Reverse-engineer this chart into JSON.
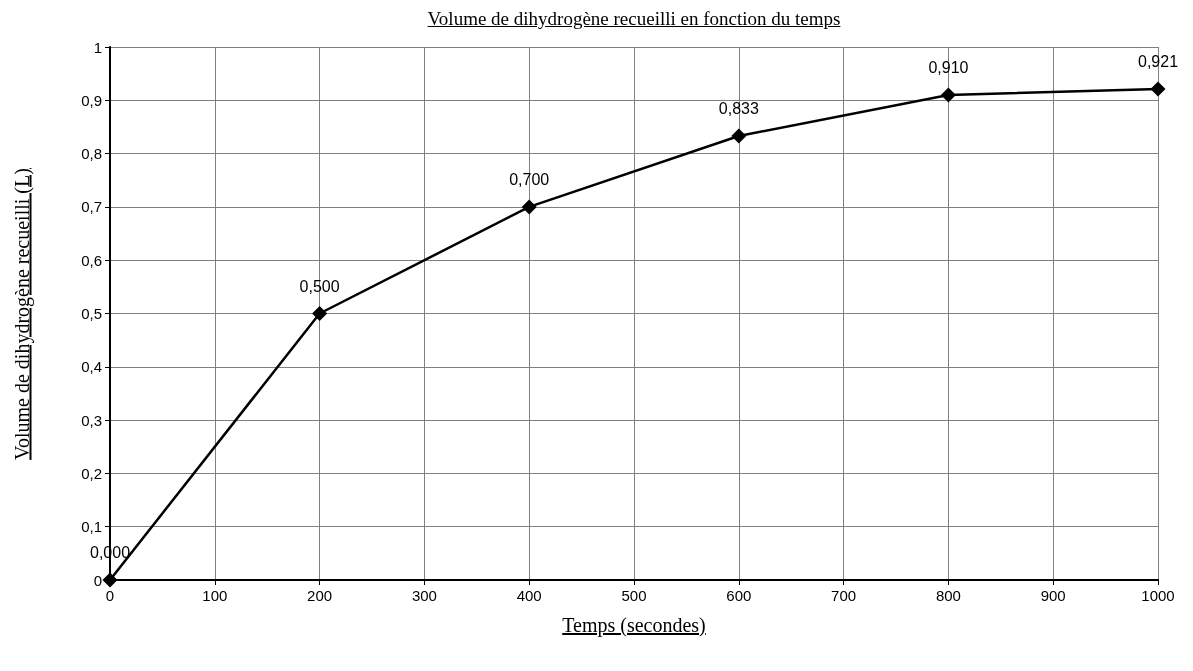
{
  "chart_data": {
    "type": "line",
    "title": "Volume de dihydrogène recueilli en fonction du temps",
    "xlabel": "Temps (secondes)",
    "ylabel": "Volume de dihydrogène recueilli (L)",
    "x": [
      0,
      200,
      400,
      600,
      800,
      1000
    ],
    "series": [
      {
        "color": "#000000",
        "values": [
          0,
          0.5,
          0.7,
          0.833,
          0.91,
          0.921
        ],
        "value_labels": [
          "0,000",
          "0,500",
          "0,700",
          "0,833",
          "0,910",
          "0,921"
        ]
      }
    ],
    "xlim": [
      0,
      1000
    ],
    "xticks": [
      0,
      100,
      200,
      300,
      400,
      500,
      600,
      700,
      800,
      900,
      1000
    ],
    "ylim": [
      0,
      1
    ],
    "yticks": [
      0,
      {
        "value": 0.1,
        "label": "0,1"
      },
      {
        "value": 0.2,
        "label": "0,2"
      },
      {
        "value": 0.3,
        "label": "0,3"
      },
      {
        "value": 0.4,
        "label": "0,4"
      },
      {
        "value": 0.5,
        "label": "0,5"
      },
      {
        "value": 0.6,
        "label": "0,6"
      },
      {
        "value": 0.7,
        "label": "0,7"
      },
      {
        "value": 0.8,
        "label": "0,8"
      },
      {
        "value": 0.9,
        "label": "0,9"
      },
      1
    ],
    "grid": true,
    "marker": "diamond",
    "line_style": "solid"
  }
}
